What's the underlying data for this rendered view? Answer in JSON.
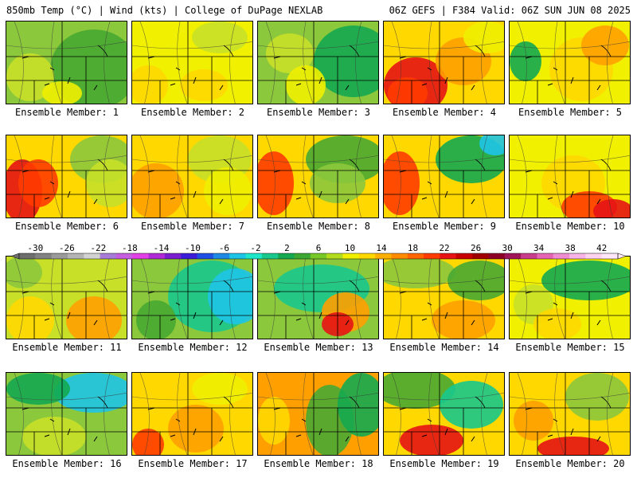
{
  "header": {
    "left": "850mb Temp (°C) | Wind (kts) | College of DuPage NEXLAB",
    "right": "06Z GEFS | F384 Valid: 06Z SUN JUN 08 2025"
  },
  "members": [
    {
      "label": "Ensemble Member: 1"
    },
    {
      "label": "Ensemble Member: 2"
    },
    {
      "label": "Ensemble Member: 3"
    },
    {
      "label": "Ensemble Member: 4"
    },
    {
      "label": "Ensemble Member: 5"
    },
    {
      "label": "Ensemble Member: 6"
    },
    {
      "label": "Ensemble Member: 7"
    },
    {
      "label": "Ensemble Member: 8"
    },
    {
      "label": "Ensemble Member: 9"
    },
    {
      "label": "Ensemble Member: 10"
    },
    {
      "label": "Ensemble Member: 11"
    },
    {
      "label": "Ensemble Member: 12"
    },
    {
      "label": "Ensemble Member: 13"
    },
    {
      "label": "Ensemble Member: 14"
    },
    {
      "label": "Ensemble Member: 15"
    },
    {
      "label": "Ensemble Member: 16"
    },
    {
      "label": "Ensemble Member: 17"
    },
    {
      "label": "Ensemble Member: 18"
    },
    {
      "label": "Ensemble Member: 19"
    },
    {
      "label": "Ensemble Member: 20"
    }
  ],
  "colorbar": {
    "labels": [
      "-30",
      "-26",
      "-22",
      "-18",
      "-14",
      "-10",
      "-6",
      "-2",
      "2",
      "6",
      "10",
      "14",
      "18",
      "22",
      "26",
      "30",
      "34",
      "38",
      "42"
    ],
    "colors": [
      "#6e6e6e",
      "#828282",
      "#9a9a9a",
      "#b4b4b4",
      "#d2d2d2",
      "#a87bd8",
      "#c65ee0",
      "#e040e6",
      "#b02ad8",
      "#7a1ed0",
      "#3c1ed8",
      "#1e50e6",
      "#1e8ae6",
      "#1ec4e6",
      "#1ee6c8",
      "#18c88c",
      "#14a850",
      "#3ca832",
      "#78c828",
      "#b4dc1e",
      "#f0f000",
      "#ffd800",
      "#ffb000",
      "#ff8c00",
      "#ff6400",
      "#ff3c00",
      "#e61414",
      "#c80000",
      "#a00000",
      "#8c0028",
      "#a0145a",
      "#c83c8c",
      "#e664b4",
      "#f08cd2",
      "#f8b4e6",
      "#ffd2f0",
      "#ffe6f8"
    ]
  }
}
